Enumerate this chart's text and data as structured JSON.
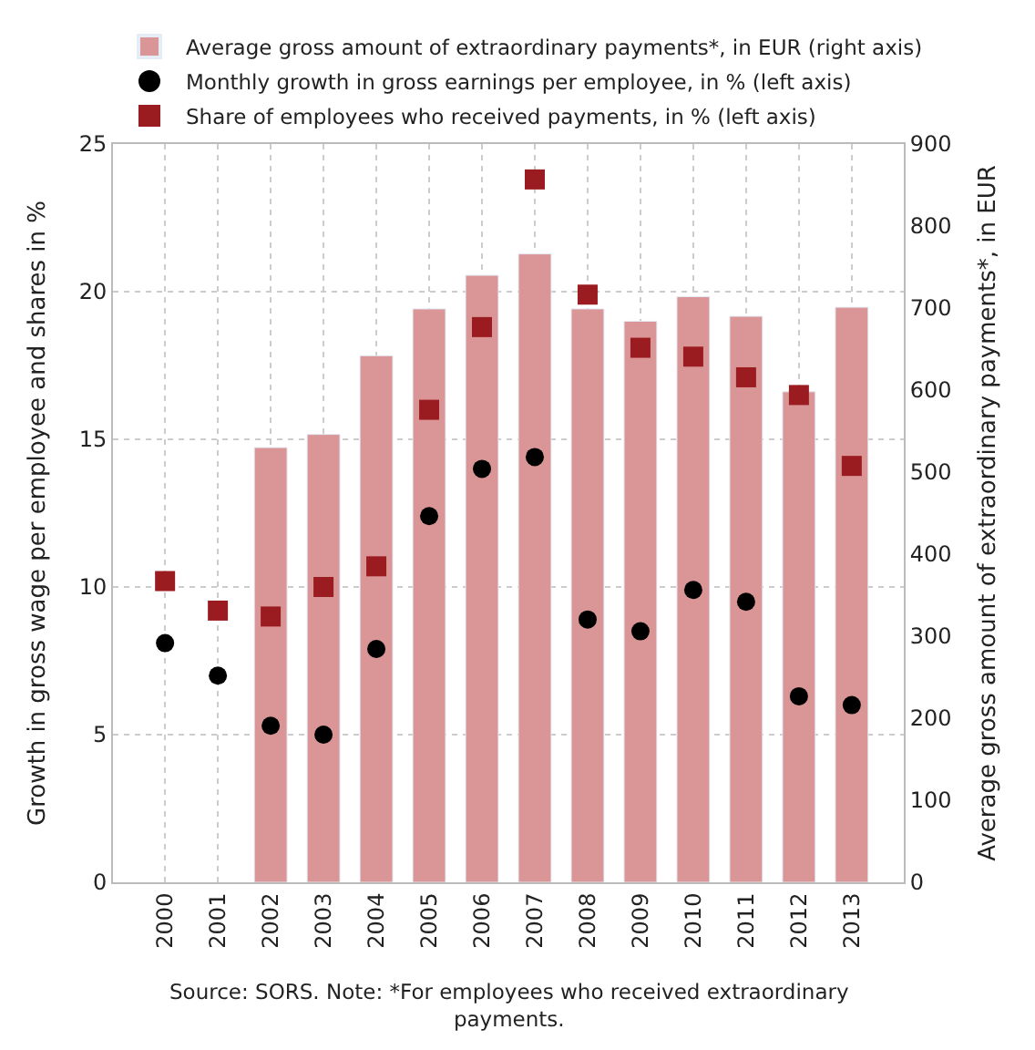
{
  "chart_data": {
    "type": "bar",
    "categories": [
      "2000",
      "2001",
      "2002",
      "2003",
      "2004",
      "2005",
      "2006",
      "2007",
      "2008",
      "2009",
      "2010",
      "2011",
      "2012",
      "2013"
    ],
    "series": [
      {
        "name": "Average gross amount of extraordinary payments*, in EUR (right axis)",
        "axis": "y2",
        "color": "#da9696",
        "values": [
          null,
          null,
          530,
          546,
          642,
          699,
          740,
          766,
          699,
          684,
          714,
          690,
          598,
          701
        ]
      },
      {
        "name": "Monthly growth in gross earnings per employee, in % (left axis)",
        "type": "scatter",
        "marker": "circle",
        "color": "#000000",
        "values": [
          8.1,
          7.0,
          5.3,
          5.0,
          7.9,
          12.4,
          14.0,
          14.4,
          8.9,
          8.5,
          9.9,
          9.5,
          6.3,
          6.0
        ]
      },
      {
        "name": "Share of employees who received payments, in % (left axis)",
        "type": "scatter",
        "marker": "square",
        "color": "#9b1c20",
        "values": [
          10.2,
          9.2,
          9.0,
          10.0,
          10.7,
          16.0,
          18.8,
          23.8,
          19.9,
          18.1,
          17.8,
          17.1,
          16.5,
          14.1
        ]
      }
    ],
    "ylabel": "Growth in gross wage per employee and shares in %",
    "y2label": "Average gross amount of extraordinary payments*, in EUR",
    "ylim": [
      0,
      25
    ],
    "yticks": [
      0,
      5,
      10,
      15,
      20,
      25
    ],
    "y2lim": [
      0,
      900
    ],
    "y2ticks": [
      0,
      100,
      200,
      300,
      400,
      500,
      600,
      700,
      800,
      900
    ],
    "grid": true,
    "legend": "top",
    "annotations": [
      "Source: SORS. Note: *For employees who received extraordinary payments."
    ]
  }
}
